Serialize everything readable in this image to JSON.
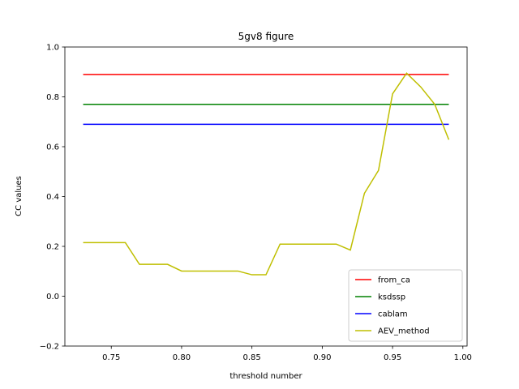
{
  "chart_data": {
    "type": "line",
    "title": "5gv8 figure",
    "xlabel": "threshold number",
    "ylabel": "CC values",
    "xlim": [
      0.717,
      1.003
    ],
    "ylim": [
      -0.2,
      1.0
    ],
    "xticks": [
      0.75,
      0.8,
      0.85,
      0.9,
      0.95,
      1.0
    ],
    "xtick_labels": [
      "0.75",
      "0.80",
      "0.85",
      "0.90",
      "0.95",
      "1.00"
    ],
    "yticks": [
      -0.2,
      0.0,
      0.2,
      0.4,
      0.6,
      0.8,
      1.0
    ],
    "ytick_labels": [
      "−0.2",
      "0.0",
      "0.2",
      "0.4",
      "0.6",
      "0.8",
      "1.0"
    ],
    "grid": false,
    "legend": "lower-right",
    "series": [
      {
        "name": "from_ca",
        "color": "#ff0000",
        "x": [
          0.73,
          0.99
        ],
        "y": [
          0.89,
          0.89
        ]
      },
      {
        "name": "ksdssp",
        "color": "#008000",
        "x": [
          0.73,
          0.99
        ],
        "y": [
          0.77,
          0.77
        ]
      },
      {
        "name": "cablam",
        "color": "#0000ff",
        "x": [
          0.73,
          0.99
        ],
        "y": [
          0.69,
          0.69
        ]
      },
      {
        "name": "AEV_method",
        "color": "#bfbf00",
        "x": [
          0.73,
          0.74,
          0.75,
          0.76,
          0.77,
          0.78,
          0.79,
          0.8,
          0.81,
          0.82,
          0.83,
          0.84,
          0.85,
          0.86,
          0.87,
          0.88,
          0.89,
          0.9,
          0.91,
          0.92,
          0.93,
          0.94,
          0.95,
          0.96,
          0.97,
          0.98,
          0.99
        ],
        "y": [
          0.215,
          0.215,
          0.215,
          0.215,
          0.128,
          0.128,
          0.128,
          0.101,
          0.101,
          0.101,
          0.101,
          0.101,
          0.086,
          0.086,
          0.209,
          0.209,
          0.209,
          0.209,
          0.209,
          0.185,
          0.413,
          0.505,
          0.812,
          0.895,
          0.84,
          0.77,
          0.628
        ]
      }
    ]
  }
}
